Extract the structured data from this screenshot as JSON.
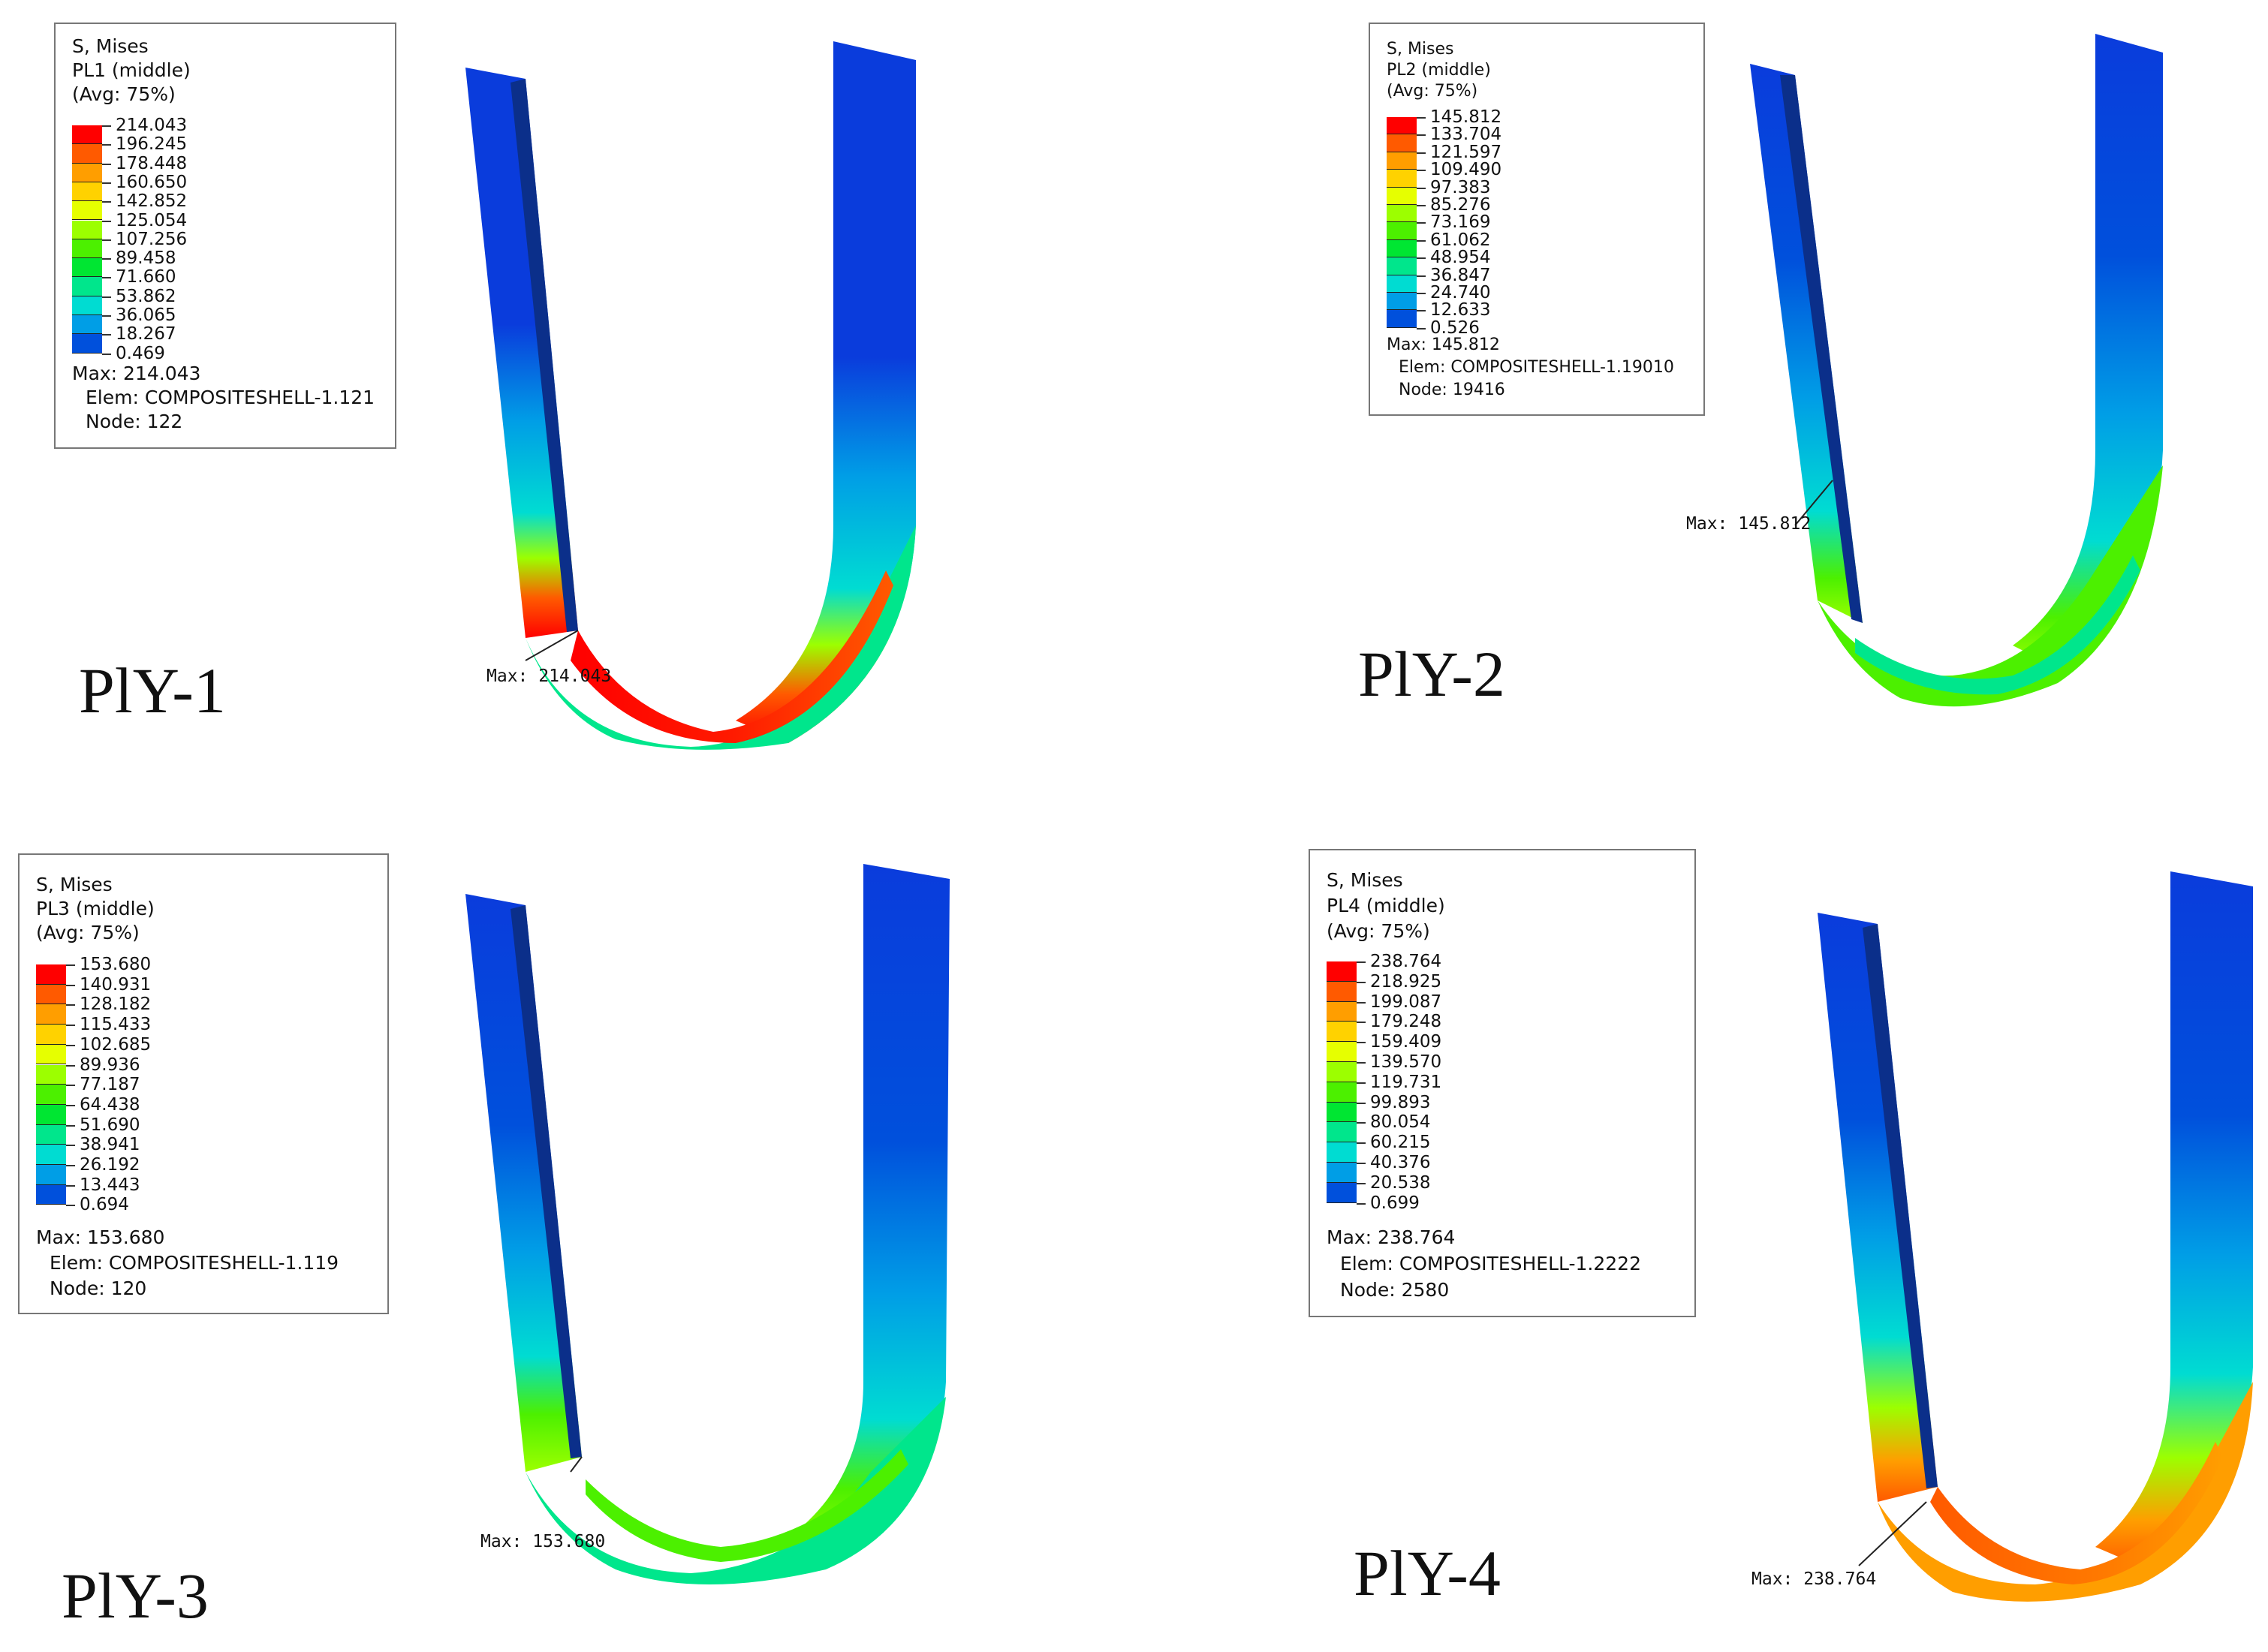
{
  "panels": [
    {
      "ply_label": "PlY-1",
      "legend": {
        "line1": "S, Mises",
        "line2": "PL1 (middle)",
        "line3": "(Avg: 75%)",
        "values": [
          "214.043",
          "196.245",
          "178.448",
          "160.650",
          "142.852",
          "125.054",
          "107.256",
          "89.458",
          "71.660",
          "53.862",
          "36.065",
          "18.267",
          "0.469"
        ],
        "max_line": "Max: 214.043",
        "elem_line": "Elem: COMPOSITESHELL-1.121",
        "node_line": "Node: 122"
      },
      "max_label": "Max: 214.043"
    },
    {
      "ply_label": "PlY-2",
      "legend": {
        "line1": "S, Mises",
        "line2": "PL2 (middle)",
        "line3": "(Avg: 75%)",
        "values": [
          "145.812",
          "133.704",
          "121.597",
          "109.490",
          "97.383",
          "85.276",
          "73.169",
          "61.062",
          "48.954",
          "36.847",
          "24.740",
          "12.633",
          "0.526"
        ],
        "max_line": "Max: 145.812",
        "elem_line": "Elem: COMPOSITESHELL-1.19010",
        "node_line": "Node: 19416"
      },
      "max_label": "Max: 145.812"
    },
    {
      "ply_label": "PlY-3",
      "legend": {
        "line1": "S, Mises",
        "line2": "PL3 (middle)",
        "line3": "(Avg: 75%)",
        "values": [
          "153.680",
          "140.931",
          "128.182",
          "115.433",
          "102.685",
          "89.936",
          "77.187",
          "64.438",
          "51.690",
          "38.941",
          "26.192",
          "13.443",
          "0.694"
        ],
        "max_line": "Max: 153.680",
        "elem_line": "Elem: COMPOSITESHELL-1.119",
        "node_line": "Node: 120"
      },
      "max_label": "Max: 153.680"
    },
    {
      "ply_label": "PlY-4",
      "legend": {
        "line1": "S, Mises",
        "line2": "PL4 (middle)",
        "line3": "(Avg: 75%)",
        "values": [
          "238.764",
          "218.925",
          "199.087",
          "179.248",
          "159.409",
          "139.570",
          "119.731",
          "99.893",
          "80.054",
          "60.215",
          "40.376",
          "20.538",
          "0.699"
        ],
        "max_line": "Max: 238.764",
        "elem_line": "Elem: COMPOSITESHELL-1.2222",
        "node_line": "Node: 2580"
      },
      "max_label": "Max: 238.764"
    }
  ],
  "colors": {
    "contour_scale": [
      "#ff0000",
      "#ff5a00",
      "#ff9e00",
      "#ffd200",
      "#e6ff00",
      "#9cff00",
      "#4cf000",
      "#00e632",
      "#00e68c",
      "#00dcd2",
      "#009ee6",
      "#0050dc",
      "#0000e6"
    ],
    "model_blue": "#0a3cdc",
    "inner_edge": "#0b2f8a"
  }
}
